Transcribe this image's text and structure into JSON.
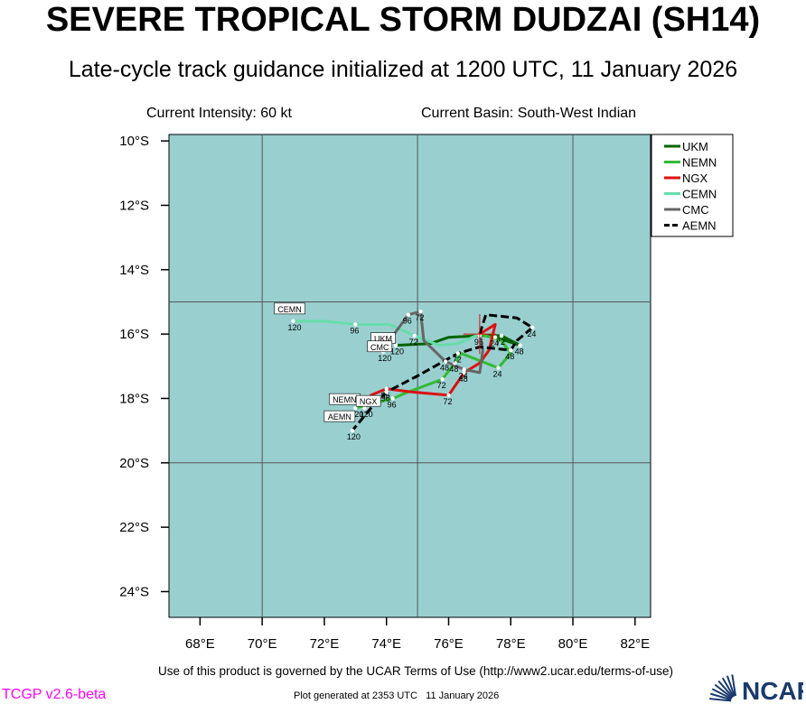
{
  "header": {
    "title": "SEVERE TROPICAL STORM DUDZAI (SH14)",
    "subtitle": "Late-cycle track guidance initialized at 1200 UTC, 11 January 2026",
    "current_intensity": "Current Intensity: 60 kt",
    "current_basin": "Current Basin: South-West Indian"
  },
  "footer": {
    "terms": "Use of this product is governed by the UCAR Terms of Use (http://www2.ucar.edu/terms-of-use)",
    "version": "TCGP v2.6-beta",
    "generated": "Plot generated at 2353 UTC   11 January 2026",
    "logo_text": "NCAR",
    "logo_color": "#1a3a6e"
  },
  "chart_data": {
    "type": "line",
    "title": "SEVERE TROPICAL STORM DUDZAI (SH14)",
    "xlim": [
      67,
      82.5
    ],
    "ylim": [
      -24.8,
      -9.8
    ],
    "x_ticks": [
      68,
      70,
      72,
      74,
      76,
      78,
      80,
      82
    ],
    "x_tick_labels": [
      "68°E",
      "70°E",
      "72°E",
      "74°E",
      "76°E",
      "78°E",
      "80°E",
      "82°E"
    ],
    "y_ticks": [
      -10,
      -12,
      -14,
      -16,
      -18,
      -20,
      -22,
      -24
    ],
    "y_tick_labels": [
      "10°S",
      "12°S",
      "14°S",
      "16°S",
      "18°S",
      "20°S",
      "22°S",
      "24°S"
    ],
    "grid_x": [
      70,
      75,
      80
    ],
    "grid_y": [
      -15,
      -20
    ],
    "background_color": "#99cfcf",
    "grid_color": "#555555",
    "legend_position": "top-right",
    "current_position": {
      "lon": 77.0,
      "lat": -16.0
    },
    "series": [
      {
        "name": "UKM",
        "color": "#006400",
        "dashed": false,
        "points": [
          {
            "lon": 77.0,
            "lat": -16.0
          },
          {
            "lon": 77.5,
            "lat": -16.1,
            "label": "24"
          },
          {
            "lon": 78.3,
            "lat": -16.35,
            "label": "48"
          },
          {
            "lon": 77.7,
            "lat": -16.05,
            "label": "72"
          },
          {
            "lon": 77.0,
            "lat": -16.05,
            "label": "96"
          },
          {
            "lon": 76.0,
            "lat": -16.1
          },
          {
            "lon": 75.4,
            "lat": -16.3
          },
          {
            "lon": 74.3,
            "lat": -16.35,
            "label": "120"
          }
        ],
        "end_tag": "UKM"
      },
      {
        "name": "NEMN",
        "color": "#33bb33",
        "dashed": false,
        "points": [
          {
            "lon": 77.0,
            "lat": -16.0
          },
          {
            "lon": 77.7,
            "lat": -16.2
          },
          {
            "lon": 78.0,
            "lat": -16.6
          },
          {
            "lon": 77.6,
            "lat": -17.05,
            "label": "24"
          },
          {
            "lon": 76.4,
            "lat": -16.6
          },
          {
            "lon": 76.2,
            "lat": -16.9,
            "label": "48"
          },
          {
            "lon": 75.8,
            "lat": -17.4,
            "label": "72"
          },
          {
            "lon": 74.7,
            "lat": -17.8
          },
          {
            "lon": 74.2,
            "lat": -18.0,
            "label": "96"
          },
          {
            "lon": 73.0,
            "lat": -18.3,
            "label": "120"
          }
        ],
        "end_tag": "NEMN"
      },
      {
        "name": "NGX",
        "color": "#dd1111",
        "dashed": false,
        "points": [
          {
            "lon": 77.0,
            "lat": -16.0
          },
          {
            "lon": 77.5,
            "lat": -15.7
          },
          {
            "lon": 77.3,
            "lat": -16.5
          },
          {
            "lon": 77.0,
            "lat": -16.9
          },
          {
            "lon": 76.5,
            "lat": -17.2,
            "label": "48"
          },
          {
            "lon": 76.0,
            "lat": -17.9,
            "label": "72"
          },
          {
            "lon": 74.8,
            "lat": -17.8
          },
          {
            "lon": 74.0,
            "lat": -17.7,
            "label": "96"
          },
          {
            "lon": 73.5,
            "lat": -17.9
          },
          {
            "lon": 73.3,
            "lat": -18.3,
            "label": "120"
          }
        ],
        "end_tag": "NGX"
      },
      {
        "name": "CEMN",
        "color": "#66ddaa",
        "dashed": false,
        "points": [
          {
            "lon": 77.0,
            "lat": -16.0
          },
          {
            "lon": 76.3,
            "lat": -16.3
          },
          {
            "lon": 75.7,
            "lat": -16.35
          },
          {
            "lon": 75.3,
            "lat": -16.2
          },
          {
            "lon": 74.9,
            "lat": -16.05,
            "label": "72"
          },
          {
            "lon": 74.1,
            "lat": -15.7
          },
          {
            "lon": 73.0,
            "lat": -15.7,
            "label": "96"
          },
          {
            "lon": 72.0,
            "lat": -15.6
          },
          {
            "lon": 71.0,
            "lat": -15.6,
            "label": "120"
          }
        ],
        "end_tag": "CEMN"
      },
      {
        "name": "CMC",
        "color": "#666666",
        "dashed": false,
        "points": [
          {
            "lon": 77.0,
            "lat": -16.0
          },
          {
            "lon": 77.1,
            "lat": -16.5
          },
          {
            "lon": 77.0,
            "lat": -17.2
          },
          {
            "lon": 76.5,
            "lat": -17.1,
            "label": "24"
          },
          {
            "lon": 75.9,
            "lat": -16.85,
            "label": "48"
          },
          {
            "lon": 75.2,
            "lat": -16.2
          },
          {
            "lon": 75.1,
            "lat": -15.3,
            "label": "72"
          },
          {
            "lon": 74.7,
            "lat": -15.4,
            "label": "96"
          },
          {
            "lon": 74.1,
            "lat": -16.2
          },
          {
            "lon": 73.9,
            "lat": -16.55,
            "label": "120"
          }
        ],
        "end_tag": "CMC"
      },
      {
        "name": "AEMN",
        "color": "#000000",
        "dashed": true,
        "points": [
          {
            "lon": 77.0,
            "lat": -16.0
          },
          {
            "lon": 77.2,
            "lat": -15.4
          },
          {
            "lon": 78.2,
            "lat": -15.5
          },
          {
            "lon": 78.7,
            "lat": -15.8,
            "label": "24"
          },
          {
            "lon": 78.2,
            "lat": -16.2
          },
          {
            "lon": 78.0,
            "lat": -16.5,
            "label": "48"
          },
          {
            "lon": 77.0,
            "lat": -16.4
          },
          {
            "lon": 76.3,
            "lat": -16.6,
            "label": "72"
          },
          {
            "lon": 75.0,
            "lat": -17.3
          },
          {
            "lon": 74.0,
            "lat": -17.8,
            "label": "96"
          },
          {
            "lon": 73.5,
            "lat": -18.3
          },
          {
            "lon": 72.9,
            "lat": -19.0,
            "label": "120"
          }
        ],
        "end_tag": "AEMN"
      }
    ]
  }
}
